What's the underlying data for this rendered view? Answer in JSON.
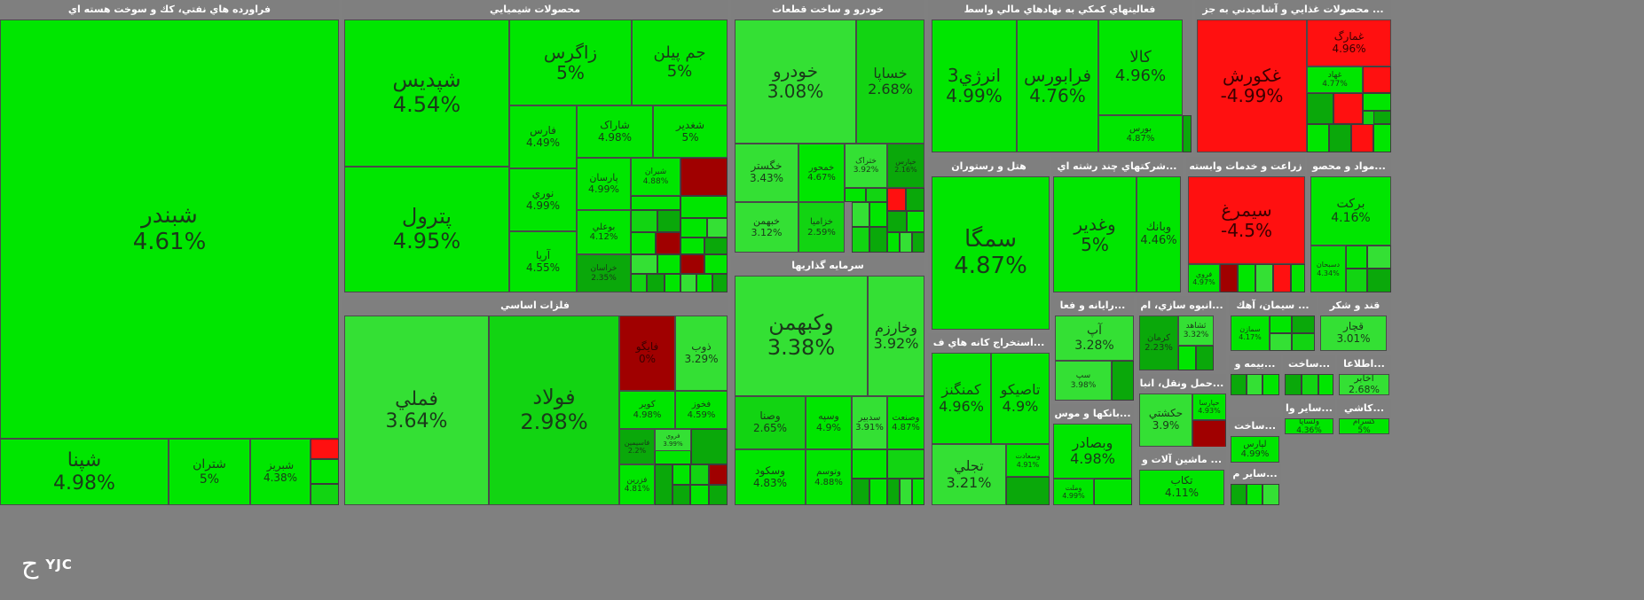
{
  "chart_data": {
    "type": "treemap",
    "colors": {
      "strong_up": "#00e600",
      "up": "#12d412",
      "mild_up": "#34e034",
      "dark_up": "#0aa80a",
      "down": "#ff1010",
      "dark_down": "#a00000",
      "gray": "#c8c8c8",
      "sector_header": "#7f7f7f"
    },
    "sectors": [
      {
        "name": "فراورده هاي نفتي، كك و سوخت هسته اي",
        "tiles": [
          {
            "symbol": "شبندر",
            "change": "4.61%",
            "color": "strong_up"
          },
          {
            "symbol": "شپنا",
            "change": "4.98%",
            "color": "strong_up"
          },
          {
            "symbol": "شتران",
            "change": "5%",
            "color": "strong_up"
          },
          {
            "symbol": "شبريز",
            "change": "4.38%",
            "color": "strong_up"
          }
        ]
      },
      {
        "name": "محصولات شيميايي",
        "tiles": [
          {
            "symbol": "شپديس",
            "change": "4.54%",
            "color": "strong_up"
          },
          {
            "symbol": "پترول",
            "change": "4.95%",
            "color": "strong_up"
          },
          {
            "symbol": "زاگرس",
            "change": "5%",
            "color": "strong_up"
          },
          {
            "symbol": "جم پيلن",
            "change": "5%",
            "color": "strong_up"
          },
          {
            "symbol": "فارس",
            "change": "4.49%",
            "color": "strong_up"
          },
          {
            "symbol": "شاراک",
            "change": "4.98%",
            "color": "strong_up"
          },
          {
            "symbol": "شغدير",
            "change": "5%",
            "color": "strong_up"
          },
          {
            "symbol": "نوري",
            "change": "4.99%",
            "color": "strong_up"
          },
          {
            "symbol": "پارسان",
            "change": "4.99%",
            "color": "strong_up"
          },
          {
            "symbol": "شيران",
            "change": "4.88%",
            "color": "strong_up"
          },
          {
            "symbol": "بوعلي",
            "change": "4.12%",
            "color": "strong_up"
          },
          {
            "symbol": "آريا",
            "change": "4.55%",
            "color": "strong_up"
          },
          {
            "symbol": "خراسان",
            "change": "2.35%",
            "color": "dark_up"
          }
        ]
      },
      {
        "name": "خودرو و ساخت قطعات",
        "tiles": [
          {
            "symbol": "خودرو",
            "change": "3.08%",
            "color": "mild_up"
          },
          {
            "symbol": "خساپا",
            "change": "2.68%",
            "color": "up"
          },
          {
            "symbol": "خگستر",
            "change": "3.43%",
            "color": "mild_up"
          },
          {
            "symbol": "خمحور",
            "change": "4.67%",
            "color": "strong_up"
          },
          {
            "symbol": "ختراک",
            "change": "3.92%",
            "color": "mild_up"
          },
          {
            "symbol": "خبهمن",
            "change": "3.12%",
            "color": "mild_up"
          },
          {
            "symbol": "خزاميا",
            "change": "2.59%",
            "color": "up"
          },
          {
            "symbol": "خپارس",
            "change": "2.16%",
            "color": "dark_up"
          }
        ]
      },
      {
        "name": "فعاليتهاي كمكي به نهادهاي مالي واسط",
        "tiles": [
          {
            "symbol": "انرژي3",
            "change": "4.99%",
            "color": "strong_up"
          },
          {
            "symbol": "فرابورس",
            "change": "4.76%",
            "color": "strong_up"
          },
          {
            "symbol": "كالا",
            "change": "4.96%",
            "color": "strong_up"
          },
          {
            "symbol": "بورس",
            "change": "4.87%",
            "color": "strong_up"
          }
        ]
      },
      {
        "name": "... محصولات غذايي و آشاميدني به جز",
        "tiles": [
          {
            "symbol": "غكورش",
            "change": "-4.99%",
            "color": "down"
          },
          {
            "symbol": "غمارگ",
            "change": "4.96%",
            "color": "down"
          },
          {
            "symbol": "غهاد",
            "change": "4.77%",
            "color": "strong_up"
          }
        ]
      },
      {
        "name": "فلزات اساسي",
        "tiles": [
          {
            "symbol": "فملي",
            "change": "3.64%",
            "color": "mild_up"
          },
          {
            "symbol": "فولاد",
            "change": "2.98%",
            "color": "up"
          },
          {
            "symbol": "فايگو",
            "change": "0%",
            "color": "dark_down"
          },
          {
            "symbol": "ذوب",
            "change": "3.29%",
            "color": "mild_up"
          },
          {
            "symbol": "كوير",
            "change": "4.98%",
            "color": "strong_up"
          },
          {
            "symbol": "فخوز",
            "change": "4.59%",
            "color": "strong_up"
          },
          {
            "symbol": "فاسيمين",
            "change": "2.2%",
            "color": "dark_up"
          },
          {
            "symbol": "فروي",
            "change": "3.99%",
            "color": "mild_up"
          },
          {
            "symbol": "فزرين",
            "change": "4.81%",
            "color": "strong_up"
          }
        ]
      },
      {
        "name": "سرمايه گذاريها",
        "tiles": [
          {
            "symbol": "وكبهمن",
            "change": "3.38%",
            "color": "mild_up"
          },
          {
            "symbol": "وخارزم",
            "change": "3.92%",
            "color": "mild_up"
          },
          {
            "symbol": "وصنا",
            "change": "2.65%",
            "color": "up"
          },
          {
            "symbol": "وسپه",
            "change": "4.9%",
            "color": "strong_up"
          },
          {
            "symbol": "سدبير",
            "change": "3.91%",
            "color": "mild_up"
          },
          {
            "symbol": "وصنعت",
            "change": "4.87%",
            "color": "strong_up"
          },
          {
            "symbol": "وسكود",
            "change": "4.83%",
            "color": "strong_up"
          },
          {
            "symbol": "وتوسم",
            "change": "4.88%",
            "color": "strong_up"
          }
        ]
      },
      {
        "name": "هتل و رستوران",
        "tiles": [
          {
            "symbol": "سمگا",
            "change": "4.87%",
            "color": "strong_up"
          }
        ]
      },
      {
        "name": "...شركتهاي چند رشته اي",
        "tiles": [
          {
            "symbol": "وغدير",
            "change": "5%",
            "color": "strong_up"
          },
          {
            "symbol": "وبانك",
            "change": "4.46%",
            "color": "strong_up"
          }
        ]
      },
      {
        "name": "زراعت و خدمات وابسته",
        "tiles": [
          {
            "symbol": "سيمرغ",
            "change": "-4.5%",
            "color": "down"
          },
          {
            "symbol": "فروي",
            "change": "4.97%",
            "color": "strong_up"
          }
        ]
      },
      {
        "name": "...مواد و محصو",
        "tiles": [
          {
            "symbol": "بركت",
            "change": "4.16%",
            "color": "strong_up"
          },
          {
            "symbol": "دسبحان",
            "change": "4.34%",
            "color": "strong_up"
          }
        ]
      },
      {
        "name": "...رايانه و فعا",
        "tiles": [
          {
            "symbol": "آپ",
            "change": "3.28%",
            "color": "mild_up"
          },
          {
            "symbol": "سپ",
            "change": "3.98%",
            "color": "mild_up"
          }
        ]
      },
      {
        "name": "...انبوه سازي، ام",
        "tiles": [
          {
            "symbol": "كرمان",
            "change": "2.23%",
            "color": "dark_up"
          },
          {
            "symbol": "ثشاهد",
            "change": "3.32%",
            "color": "mild_up"
          }
        ]
      },
      {
        "name": "... سيمان، آهك",
        "tiles": [
          {
            "symbol": "سمازن",
            "change": "4.17%",
            "color": "strong_up"
          }
        ]
      },
      {
        "name": "قند و شكر",
        "tiles": [
          {
            "symbol": "قچار",
            "change": "3.01%",
            "color": "mild_up"
          }
        ]
      },
      {
        "name": "...استخراج كانه هاي ف",
        "tiles": [
          {
            "symbol": "كمنگنز",
            "change": "4.96%",
            "color": "strong_up"
          },
          {
            "symbol": "تاصيكو",
            "change": "4.9%",
            "color": "strong_up"
          },
          {
            "symbol": "تجلي",
            "change": "3.21%",
            "color": "mild_up"
          },
          {
            "symbol": "وسعادت",
            "change": "4.91%",
            "color": "strong_up"
          }
        ]
      },
      {
        "name": "...حمل ونقل، انبا",
        "tiles": [
          {
            "symbol": "حكشتي",
            "change": "3.9%",
            "color": "mild_up"
          },
          {
            "symbol": "حپارسا",
            "change": "4.93%",
            "color": "strong_up"
          }
        ]
      },
      {
        "name": "...بانكها و موس",
        "tiles": [
          {
            "symbol": "وبصادر",
            "change": "4.98%",
            "color": "strong_up"
          },
          {
            "symbol": "وملت",
            "change": "4.99%",
            "color": "strong_up"
          }
        ]
      },
      {
        "name": "... ماشين آلات و",
        "tiles": [
          {
            "symbol": "تكاب",
            "change": "4.11%",
            "color": "strong_up"
          }
        ]
      },
      {
        "name": "...بيمه و",
        "tiles": []
      },
      {
        "name": "...ساخت",
        "tiles": []
      },
      {
        "name": "...اطلاعا",
        "tiles": [
          {
            "symbol": "اخابر",
            "change": "2.68%",
            "color": "mild_up"
          }
        ]
      },
      {
        "name": "...سایر وا",
        "tiles": [
          {
            "symbol": "ولساپا",
            "change": "4.36%",
            "color": "strong_up"
          }
        ]
      },
      {
        "name": "...كاشي",
        "tiles": [
          {
            "symbol": "كسرام",
            "change": "5%",
            "color": "strong_up"
          }
        ]
      },
      {
        "name": "...ساخت",
        "tiles": [
          {
            "symbol": "لپارس",
            "change": "4.99%",
            "color": "strong_up"
          }
        ]
      },
      {
        "name": "...ساير م",
        "tiles": []
      }
    ]
  },
  "logo": {
    "glyph": "ج",
    "text": "YJC"
  }
}
